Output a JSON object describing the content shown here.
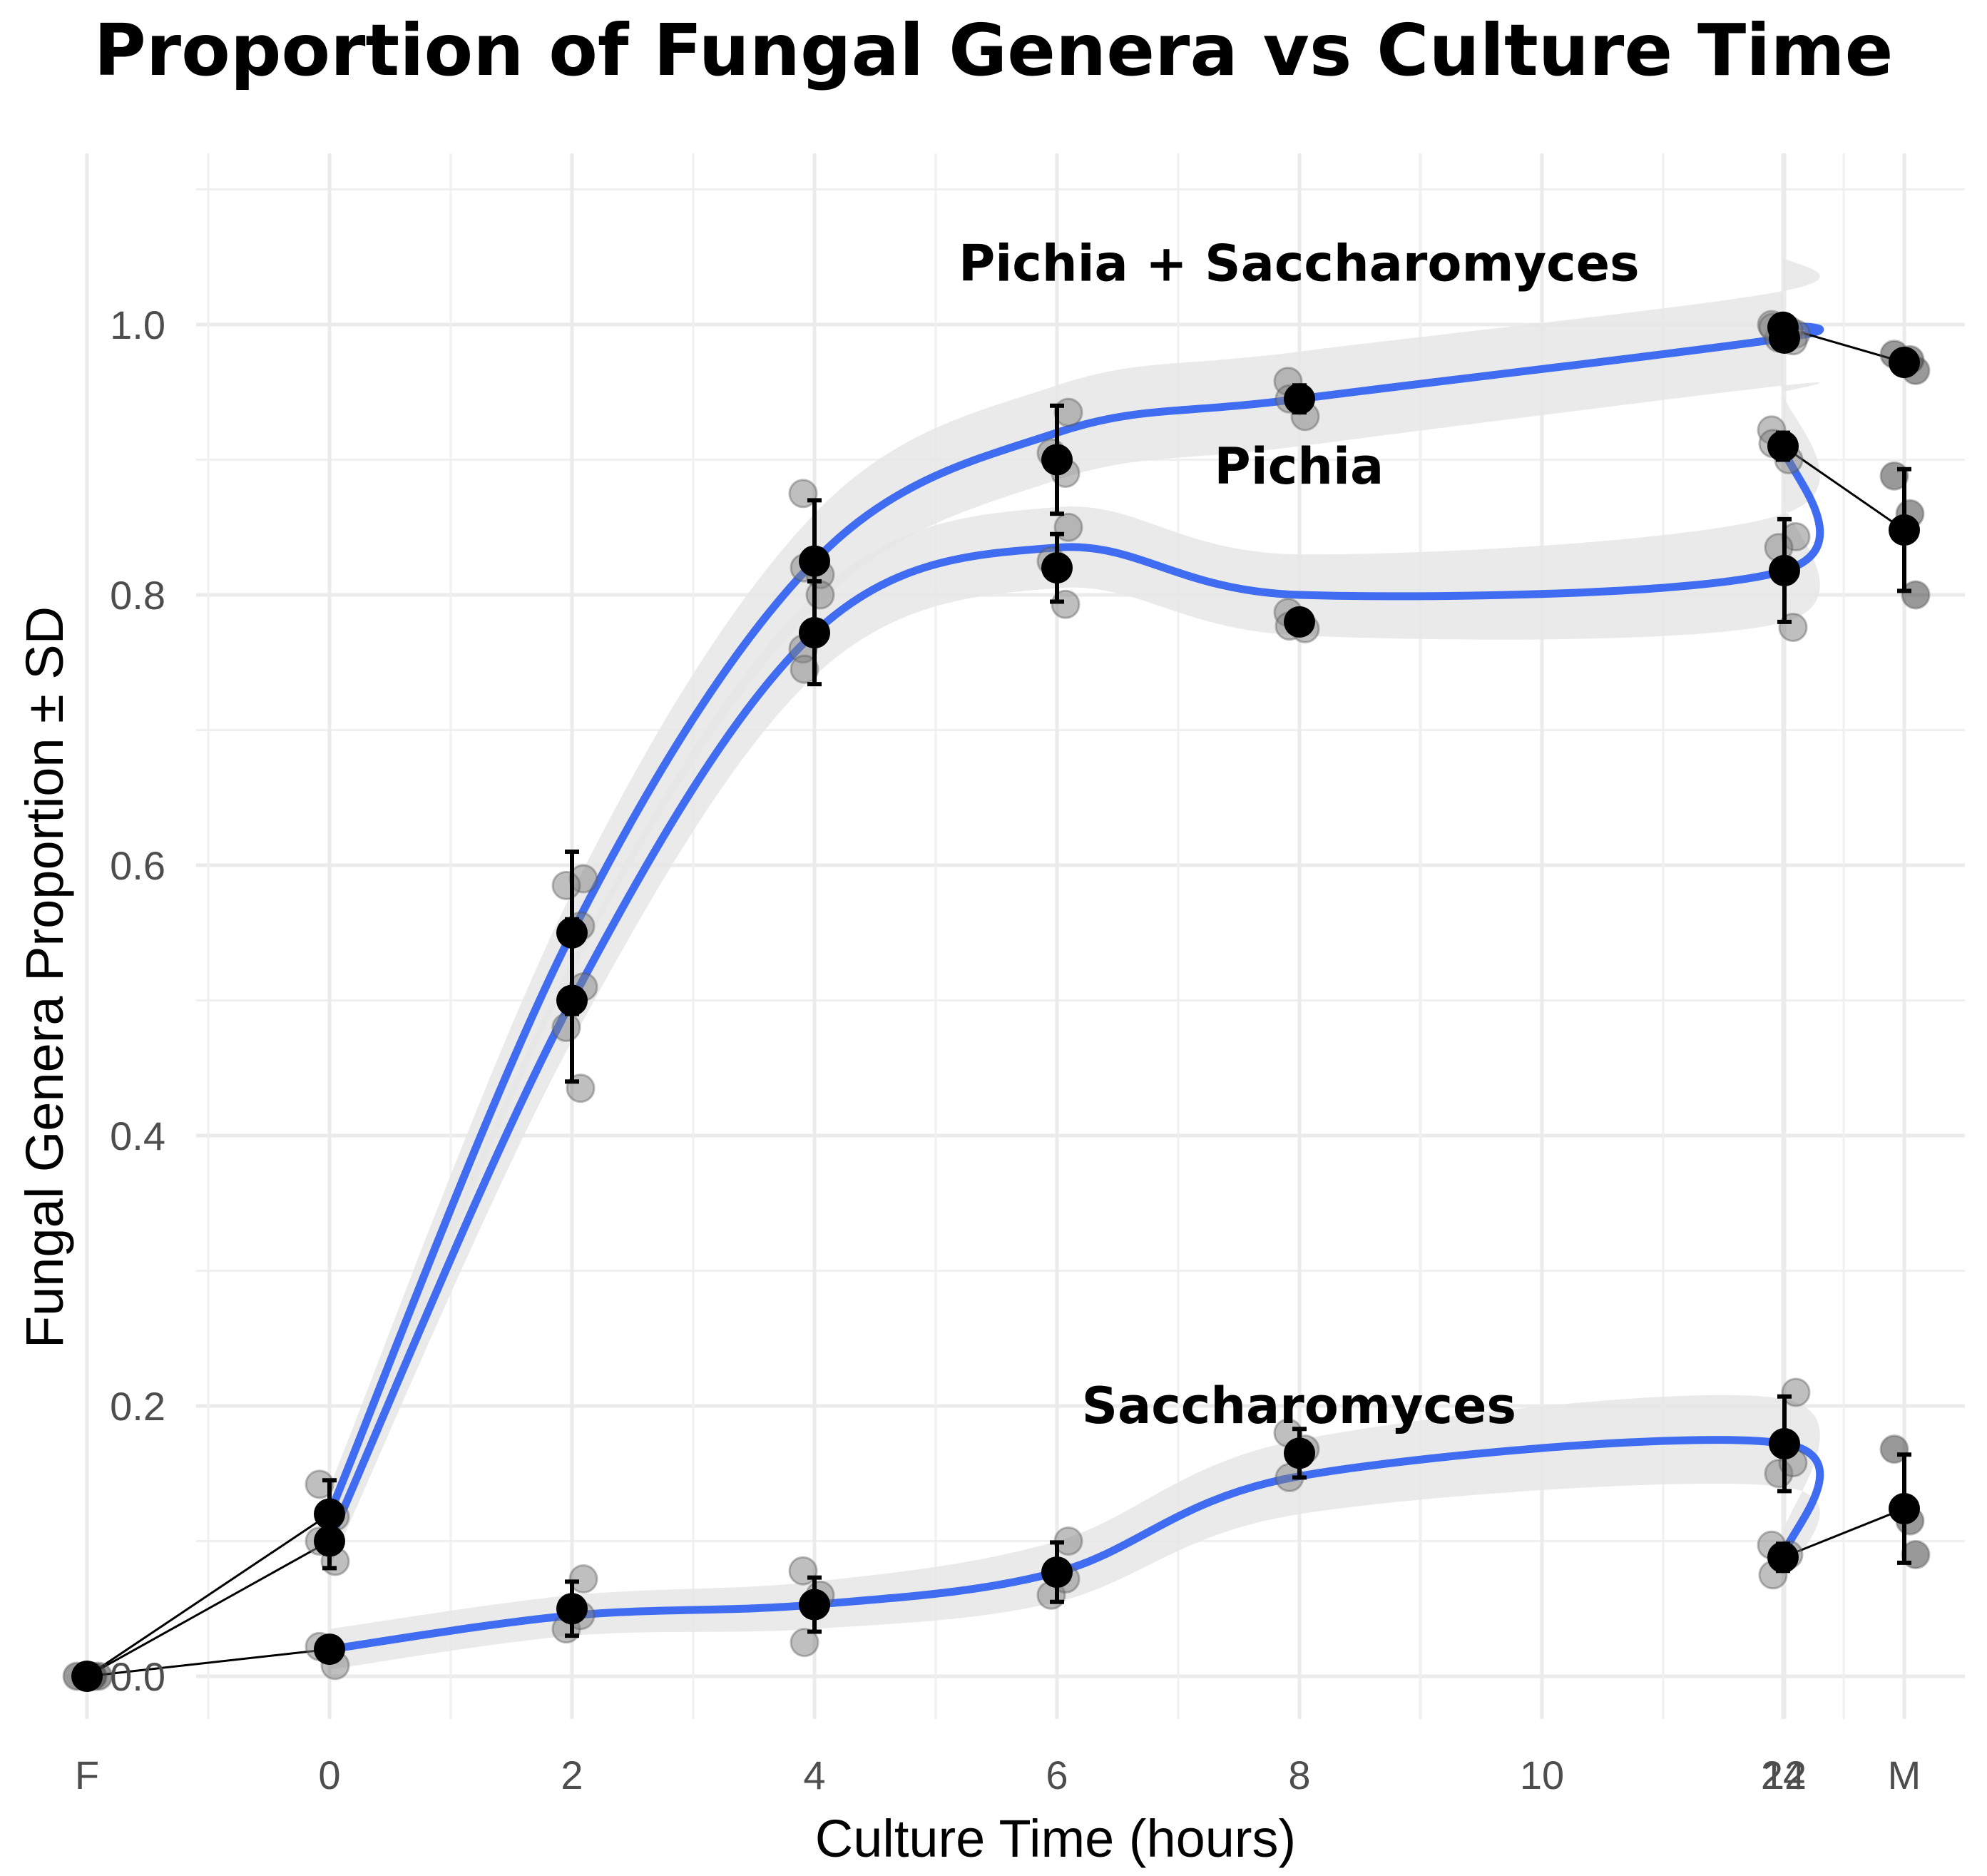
{
  "chart_data": {
    "type": "line",
    "title": "Proportion of Fungal Genera vs Culture Time",
    "xlabel": "Culture Time (hours)",
    "ylabel": "Fungal Genera Proportion ± SD",
    "ylim": [
      0,
      1.1
    ],
    "yticks": [
      "0.0",
      "0.2",
      "0.4",
      "0.6",
      "0.8",
      "1.0"
    ],
    "xticks": [
      {
        "label": "F",
        "x": -2
      },
      {
        "label": "0",
        "x": 0
      },
      {
        "label": "2",
        "x": 2
      },
      {
        "label": "4",
        "x": 4
      },
      {
        "label": "6",
        "x": 6
      },
      {
        "label": "8",
        "x": 8
      },
      {
        "label": "10",
        "x": 10
      },
      {
        "label": "12",
        "x": 12
      },
      {
        "label": "24",
        "x": 24
      },
      {
        "label": "M",
        "x": 26
      }
    ],
    "grid": true,
    "colors": {
      "smooth": "#3f6cf0",
      "band": "#e6e6e6",
      "replicate": "#808080",
      "mean": "#000000"
    },
    "series": [
      {
        "name": "Pichia + Saccharomyces",
        "x": [
          0,
          2,
          4,
          6,
          8,
          12,
          24
        ],
        "mean": [
          0.12,
          0.55,
          0.825,
          0.9,
          0.945,
          0.99,
          0.998
        ],
        "sd": [
          0.025,
          0.06,
          0.045,
          0.04,
          0.01,
          0.005,
          0.003
        ],
        "smooth": [
          0.12,
          0.55,
          0.825,
          0.92,
          0.945,
          0.99,
          1.0
        ],
        "band_lower": [
          0.1,
          0.52,
          0.79,
          0.885,
          0.91,
          0.955,
          0.95
        ],
        "band_upper": [
          0.14,
          0.58,
          0.86,
          0.955,
          0.98,
          1.025,
          1.05
        ],
        "replicates": [
          [
            0,
            0.142
          ],
          [
            0,
            0.118
          ],
          [
            2,
            0.59
          ],
          [
            2,
            0.585
          ],
          [
            2,
            0.555
          ],
          [
            4,
            0.875
          ],
          [
            4,
            0.82
          ],
          [
            4,
            0.815
          ],
          [
            6,
            0.935
          ],
          [
            6,
            0.905
          ],
          [
            6,
            0.89
          ],
          [
            8,
            0.958
          ],
          [
            8,
            0.945
          ],
          [
            8,
            0.932
          ],
          [
            12,
            0.993
          ],
          [
            12,
            0.99
          ],
          [
            12,
            0.988
          ],
          [
            24,
            1.0
          ],
          [
            24,
            0.998
          ],
          [
            24,
            0.996
          ]
        ]
      },
      {
        "name": "Pichia",
        "x": [
          0,
          2,
          4,
          6,
          8,
          12,
          24
        ],
        "mean": [
          0.1,
          0.5,
          0.772,
          0.82,
          0.78,
          0.818,
          0.91
        ],
        "sd": [
          0.02,
          0.06,
          0.038,
          0.025,
          0.005,
          0.038,
          0.01
        ],
        "smooth": [
          0.1,
          0.5,
          0.772,
          0.835,
          0.8,
          0.818,
          0.91
        ],
        "band_lower": [
          0.08,
          0.47,
          0.74,
          0.805,
          0.77,
          0.78,
          0.87
        ],
        "band_upper": [
          0.12,
          0.53,
          0.8,
          0.865,
          0.83,
          0.86,
          0.95
        ],
        "replicates": [
          [
            0,
            0.1
          ],
          [
            0,
            0.085
          ],
          [
            2,
            0.51
          ],
          [
            2,
            0.48
          ],
          [
            2,
            0.435
          ],
          [
            4,
            0.76
          ],
          [
            4,
            0.745
          ],
          [
            4,
            0.8
          ],
          [
            6,
            0.85
          ],
          [
            6,
            0.825
          ],
          [
            6,
            0.793
          ],
          [
            8,
            0.787
          ],
          [
            8,
            0.777
          ],
          [
            8,
            0.775
          ],
          [
            12,
            0.843
          ],
          [
            12,
            0.835
          ],
          [
            12,
            0.776
          ],
          [
            24,
            0.922
          ],
          [
            24,
            0.912
          ],
          [
            24,
            0.9
          ]
        ]
      },
      {
        "name": "Saccharomyces",
        "x": [
          0,
          2,
          4,
          6,
          8,
          12,
          24
        ],
        "mean": [
          0.02,
          0.05,
          0.053,
          0.077,
          0.165,
          0.172,
          0.088
        ],
        "sd": [
          0.008,
          0.02,
          0.02,
          0.022,
          0.018,
          0.035,
          0.01
        ],
        "smooth": [
          0.02,
          0.045,
          0.053,
          0.077,
          0.148,
          0.172,
          0.088
        ],
        "band_lower": [
          0.005,
          0.03,
          0.035,
          0.055,
          0.12,
          0.14,
          0.07
        ],
        "band_upper": [
          0.035,
          0.06,
          0.07,
          0.1,
          0.175,
          0.205,
          0.105
        ],
        "replicates": [
          [
            0,
            0.022
          ],
          [
            0,
            0.008
          ],
          [
            2,
            0.072
          ],
          [
            2,
            0.035
          ],
          [
            2,
            0.045
          ],
          [
            4,
            0.078
          ],
          [
            4,
            0.025
          ],
          [
            4,
            0.06
          ],
          [
            6,
            0.1
          ],
          [
            6,
            0.06
          ],
          [
            6,
            0.072
          ],
          [
            8,
            0.18
          ],
          [
            8,
            0.147
          ],
          [
            8,
            0.168
          ],
          [
            12,
            0.21
          ],
          [
            12,
            0.15
          ],
          [
            12,
            0.158
          ],
          [
            24,
            0.097
          ],
          [
            24,
            0.075
          ],
          [
            24,
            0.09
          ]
        ]
      }
    ],
    "endpoints": {
      "F": {
        "x": -2,
        "mean": 0.0,
        "replicates": [
          [
            -2,
            0.0
          ],
          [
            -2,
            0.0
          ],
          [
            -2,
            0.0
          ]
        ]
      },
      "M": {
        "x": 26,
        "pichia_saccharomyces": {
          "mean": 0.972,
          "sd": 0.004,
          "replicates": [
            [
              26,
              0.978
            ],
            [
              26,
              0.974
            ],
            [
              26,
              0.966
            ]
          ]
        },
        "pichia": {
          "mean": 0.848,
          "sd": 0.045,
          "replicates": [
            [
              26,
              0.888
            ],
            [
              26,
              0.86
            ],
            [
              26,
              0.8
            ]
          ]
        },
        "saccharomyces": {
          "mean": 0.124,
          "sd": 0.04,
          "replicates": [
            [
              26,
              0.168
            ],
            [
              26,
              0.115
            ],
            [
              26,
              0.09
            ]
          ]
        }
      }
    },
    "annotations": [
      {
        "text": "Pichia + Saccharomyces",
        "x": 16,
        "y": 1.045
      },
      {
        "text": "Pichia",
        "x": 16,
        "y": 0.895
      },
      {
        "text": "Saccharomyces",
        "x": 16,
        "y": 0.2
      }
    ]
  }
}
